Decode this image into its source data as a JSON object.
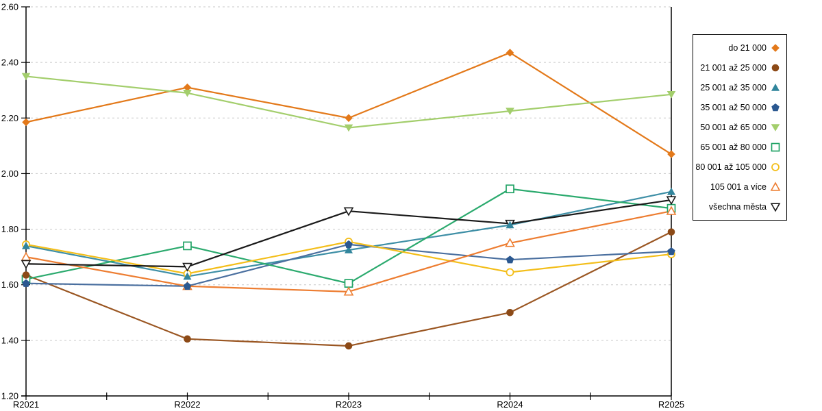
{
  "chart_data": {
    "type": "line",
    "title": "",
    "categories": [
      "R2021",
      "R2022",
      "R2023",
      "R2024",
      "R2025"
    ],
    "y_axis": {
      "min": 1.2,
      "max": 2.6,
      "step": 0.2,
      "tick_labels": [
        "1.20",
        "1.40",
        "1.60",
        "1.80",
        "2.00",
        "2.20",
        "2.40",
        "2.60"
      ]
    },
    "ylim": [
      1.2,
      2.6
    ],
    "grid": "horizontal-dashed",
    "legend_position": "right",
    "series": [
      {
        "name": "do 21 000",
        "marker": "diamond-filled",
        "color": "#E3791A",
        "line_color": "#E3791A",
        "values": [
          2.185,
          2.31,
          2.2,
          2.435,
          2.07
        ]
      },
      {
        "name": "21 001 až 25 000",
        "marker": "circle-filled",
        "color": "#8C4A17",
        "line_color": "#9A5622",
        "values": [
          1.635,
          1.405,
          1.38,
          1.5,
          1.79
        ]
      },
      {
        "name": "25 001 až 35 000",
        "marker": "triangle-up-filled",
        "color": "#31859C",
        "line_color": "#3E8FA6",
        "values": [
          1.74,
          1.63,
          1.725,
          1.815,
          1.935
        ]
      },
      {
        "name": "35 001 až 50 000",
        "marker": "pentagon-filled",
        "color": "#2B5890",
        "line_color": "#4A6F9F",
        "values": [
          1.605,
          1.595,
          1.745,
          1.69,
          1.72
        ]
      },
      {
        "name": "50 001 až 65 000",
        "marker": "triangle-down-filled",
        "color": "#A3CE6C",
        "line_color": "#A3CE6C",
        "values": [
          2.35,
          2.29,
          2.165,
          2.225,
          2.285
        ]
      },
      {
        "name": "65 001 až 80 000",
        "marker": "square-hollow",
        "color": "#21A366",
        "line_color": "#2BAA6E",
        "values": [
          1.62,
          1.74,
          1.605,
          1.945,
          1.875
        ]
      },
      {
        "name": "80 001 až 105 000",
        "marker": "circle-hollow",
        "color": "#F3BE1A",
        "line_color": "#F3BE1A",
        "values": [
          1.745,
          1.64,
          1.755,
          1.645,
          1.71
        ]
      },
      {
        "name": "105 001 a více",
        "marker": "triangle-up-hollow",
        "color": "#ED7D31",
        "line_color": "#ED7D31",
        "values": [
          1.7,
          1.595,
          1.575,
          1.75,
          1.865
        ]
      },
      {
        "name": "všechna města",
        "marker": "triangle-down-hollow",
        "color": "#1A1A1A",
        "line_color": "#1A1A1A",
        "values": [
          1.675,
          1.665,
          1.865,
          1.82,
          1.905
        ]
      }
    ],
    "axis_color": "#000000",
    "gridline_color": "#C8C8C8",
    "text_color": "#000000"
  }
}
